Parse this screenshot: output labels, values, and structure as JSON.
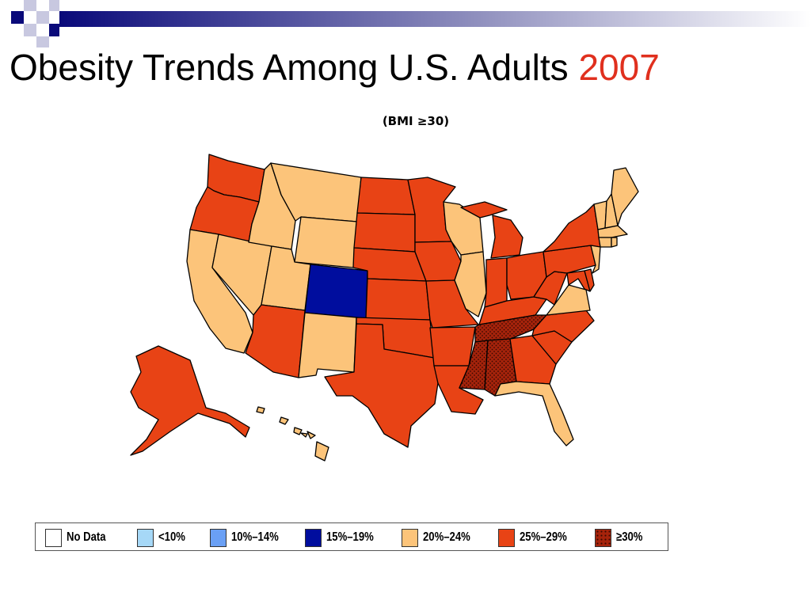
{
  "slide": {
    "title": "Obesity Trends Among U.S. Adults",
    "title_year": "2007",
    "subtitle": "(BMI ≥30)"
  },
  "colors": {
    "no_data": "#ffffff",
    "lt10": "#a6d8f7",
    "10_14": "#6aa0f5",
    "15_19": "#000d9e",
    "20_24": "#fcc47a",
    "25_29": "#e84315",
    "ge30": "#a6230b",
    "title_year": "#e0301e"
  },
  "legend": [
    {
      "label": "No Data",
      "color_key": "no_data"
    },
    {
      "label": "<10%",
      "color_key": "lt10"
    },
    {
      "label": "10%–14%",
      "color_key": "10_14"
    },
    {
      "label": "15%–19%",
      "color_key": "15_19"
    },
    {
      "label": "20%–24%",
      "color_key": "20_24"
    },
    {
      "label": "25%–29%",
      "color_key": "25_29"
    },
    {
      "label": "≥30%",
      "color_key": "ge30"
    }
  ],
  "states": {
    "WA": "25_29",
    "OR": "25_29",
    "CA": "20_24",
    "NV": "20_24",
    "ID": "20_24",
    "MT": "20_24",
    "WY": "20_24",
    "UT": "20_24",
    "AZ": "25_29",
    "CO": "15_19",
    "NM": "20_24",
    "ND": "25_29",
    "SD": "25_29",
    "NE": "25_29",
    "KS": "25_29",
    "OK": "25_29",
    "TX": "25_29",
    "MN": "25_29",
    "IA": "25_29",
    "MO": "25_29",
    "AR": "25_29",
    "LA": "25_29",
    "WI": "20_24",
    "IL": "20_24",
    "MI": "25_29",
    "IN": "25_29",
    "OH": "25_29",
    "KY": "25_29",
    "TN": "ge30",
    "MS": "ge30",
    "AL": "ge30",
    "GA": "25_29",
    "FL": "20_24",
    "SC": "25_29",
    "NC": "25_29",
    "VA": "20_24",
    "WV": "25_29",
    "PA": "25_29",
    "NY": "25_29",
    "ME": "20_24",
    "NH": "20_24",
    "VT": "20_24",
    "MA": "20_24",
    "CT": "20_24",
    "RI": "20_24",
    "NJ": "20_24",
    "DE": "25_29",
    "MD": "25_29",
    "AK": "25_29",
    "HI": "20_24"
  }
}
